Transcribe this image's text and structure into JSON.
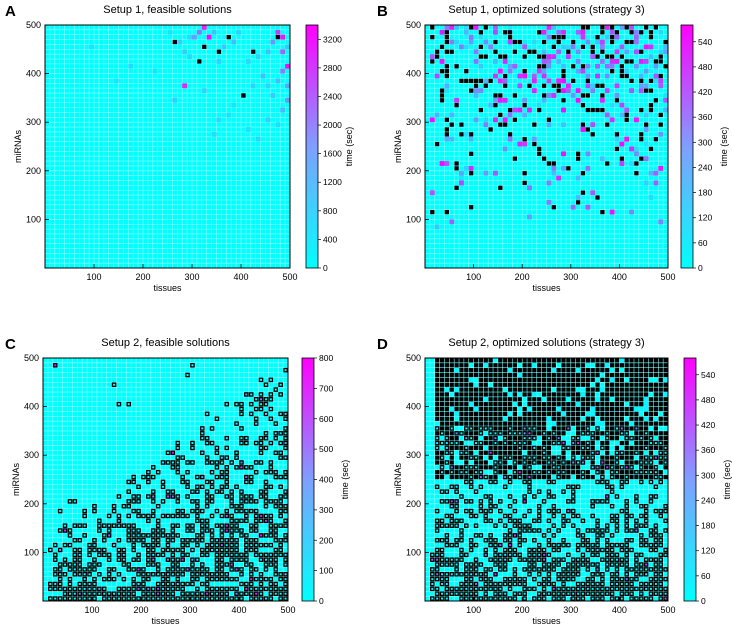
{
  "chart_data": [
    {
      "type": "heatmap",
      "panel_letter": "A",
      "title": "Setup 1, feasible solutions",
      "xlabel": "tissues",
      "ylabel": "miRNAs",
      "xlim": [
        0,
        500
      ],
      "ylim": [
        0,
        500
      ],
      "x_ticks": [
        "100",
        "200",
        "300",
        "400",
        "500"
      ],
      "y_ticks": [
        "100",
        "200",
        "300",
        "400",
        "500"
      ],
      "colorbar": {
        "label": "time (sec)",
        "min": 0,
        "max": 3400,
        "ticks": [
          "0",
          "400",
          "800",
          "1200",
          "1600",
          "2000",
          "2400",
          "2800",
          "3200"
        ]
      },
      "colormap": {
        "low": "#00ffff",
        "high": "#ff00ff",
        "missing_fill": "#000000"
      },
      "grid_cells": 50,
      "highlight_cells": [
        {
          "x": 33,
          "y": 50,
          "v": 2900
        },
        {
          "x": 34,
          "y": 48,
          "v": 3300
        },
        {
          "x": 32,
          "y": 49,
          "v": 1800
        },
        {
          "x": 31,
          "y": 48,
          "v": 1200
        },
        {
          "x": 35,
          "y": 49,
          "v": 800
        },
        {
          "x": 29,
          "y": 45,
          "v": 600
        },
        {
          "x": 28,
          "y": 47,
          "v": 700
        },
        {
          "x": 30,
          "y": 44,
          "v": 500
        },
        {
          "x": 37,
          "y": 46,
          "v": 700
        },
        {
          "x": 39,
          "y": 47,
          "v": 900
        },
        {
          "x": 40,
          "y": 49,
          "v": 600
        },
        {
          "x": 42,
          "y": 43,
          "v": 500
        },
        {
          "x": 44,
          "y": 44,
          "v": 600
        },
        {
          "x": 46,
          "y": 45,
          "v": 800
        },
        {
          "x": 47,
          "y": 47,
          "v": 1400
        },
        {
          "x": 48,
          "y": 49,
          "v": 2600
        },
        {
          "x": 49,
          "y": 48,
          "v": 3100
        },
        {
          "x": 49,
          "y": 45,
          "v": 2000
        },
        {
          "x": 50,
          "y": 42,
          "v": 3200
        },
        {
          "x": 49,
          "y": 41,
          "v": 1600
        },
        {
          "x": 48,
          "y": 39,
          "v": 900
        },
        {
          "x": 50,
          "y": 38,
          "v": 1200
        },
        {
          "x": 47,
          "y": 36,
          "v": 700
        },
        {
          "x": 45,
          "y": 40,
          "v": 800
        },
        {
          "x": 43,
          "y": 38,
          "v": 600
        },
        {
          "x": 41,
          "y": 36,
          "v": 500
        },
        {
          "x": 39,
          "y": 34,
          "v": 400
        },
        {
          "x": 36,
          "y": 31,
          "v": 500
        },
        {
          "x": 46,
          "y": 31,
          "v": 600
        },
        {
          "x": 49,
          "y": 33,
          "v": 900
        },
        {
          "x": 50,
          "y": 35,
          "v": 1400
        },
        {
          "x": 48,
          "y": 30,
          "v": 500
        },
        {
          "x": 23,
          "y": 41,
          "v": 400
        },
        {
          "x": 18,
          "y": 42,
          "v": 500
        },
        {
          "x": 15,
          "y": 39,
          "v": 400
        },
        {
          "x": 10,
          "y": 46,
          "v": 400
        },
        {
          "x": 29,
          "y": 38,
          "v": 2800
        },
        {
          "x": 27,
          "y": 35,
          "v": 700
        },
        {
          "x": 33,
          "y": 37,
          "v": 600
        },
        {
          "x": 35,
          "y": 28,
          "v": 500
        },
        {
          "x": 42,
          "y": 29,
          "v": 400
        },
        {
          "x": 44,
          "y": 27,
          "v": 500
        },
        {
          "x": 38,
          "y": 32,
          "v": 400
        },
        {
          "x": 46,
          "y": 38,
          "v": 600
        },
        {
          "x": 50,
          "y": 46,
          "v": 800
        },
        {
          "x": 30,
          "y": 48,
          "v": 500
        },
        {
          "x": 36,
          "y": 43,
          "v": 600
        },
        {
          "x": 26,
          "y": 49,
          "v": 400
        }
      ],
      "missing_cells": [
        {
          "x": 27,
          "y": 47
        },
        {
          "x": 33,
          "y": 46
        },
        {
          "x": 36,
          "y": 45
        },
        {
          "x": 38,
          "y": 48
        },
        {
          "x": 43,
          "y": 45
        },
        {
          "x": 41,
          "y": 36
        },
        {
          "x": 32,
          "y": 43
        },
        {
          "x": 48,
          "y": 48
        }
      ]
    },
    {
      "type": "heatmap",
      "panel_letter": "B",
      "title": "Setup 1, optimized solutions (strategy 3)",
      "xlabel": "tissues",
      "ylabel": "miRNAs",
      "xlim": [
        0,
        500
      ],
      "ylim": [
        0,
        500
      ],
      "x_ticks": [
        "100",
        "200",
        "300",
        "400",
        "500"
      ],
      "y_ticks": [
        "100",
        "200",
        "300",
        "400",
        "500"
      ],
      "colorbar": {
        "label": "time (sec)",
        "min": 0,
        "max": 580,
        "ticks": [
          "0",
          "60",
          "120",
          "180",
          "240",
          "300",
          "360",
          "420",
          "480",
          "540"
        ]
      },
      "colormap": {
        "low": "#00ffff",
        "high": "#ff00ff",
        "missing_fill": "#000000"
      },
      "grid_cells": 50,
      "pattern": "dense_top_sparse_bottom"
    },
    {
      "type": "heatmap",
      "panel_letter": "C",
      "title": "Setup 2, feasible solutions",
      "xlabel": "tissues",
      "ylabel": "miRNAs",
      "xlim": [
        0,
        500
      ],
      "ylim": [
        0,
        500
      ],
      "x_ticks": [
        "100",
        "200",
        "300",
        "400",
        "500"
      ],
      "y_ticks": [
        "100",
        "200",
        "300",
        "400",
        "500"
      ],
      "colorbar": {
        "label": "time (sec)",
        "min": 0,
        "max": 800,
        "ticks": [
          "0",
          "100",
          "200",
          "300",
          "400",
          "500",
          "600",
          "700",
          "800"
        ]
      },
      "colormap": {
        "low": "#00ffff",
        "high": "#ff00ff",
        "missing_fill": "#000000"
      },
      "grid_cells": 50,
      "pattern": "outlined_lower_triangle"
    },
    {
      "type": "heatmap",
      "panel_letter": "D",
      "title": "Setup 2, optimized solutions (strategy 3)",
      "xlabel": "tissues",
      "ylabel": "miRNAs",
      "xlim": [
        0,
        500
      ],
      "ylim": [
        0,
        500
      ],
      "x_ticks": [
        "100",
        "200",
        "300",
        "400",
        "500"
      ],
      "y_ticks": [
        "100",
        "200",
        "300",
        "400",
        "500"
      ],
      "colorbar": {
        "label": "time (sec)",
        "min": 0,
        "max": 580,
        "ticks": [
          "0",
          "60",
          "120",
          "180",
          "240",
          "300",
          "360",
          "420",
          "480",
          "540"
        ]
      },
      "colormap": {
        "low": "#00ffff",
        "high": "#ff00ff",
        "missing_fill": "#000000"
      },
      "grid_cells": 50,
      "pattern": "black_top_outlined_bottom"
    }
  ]
}
